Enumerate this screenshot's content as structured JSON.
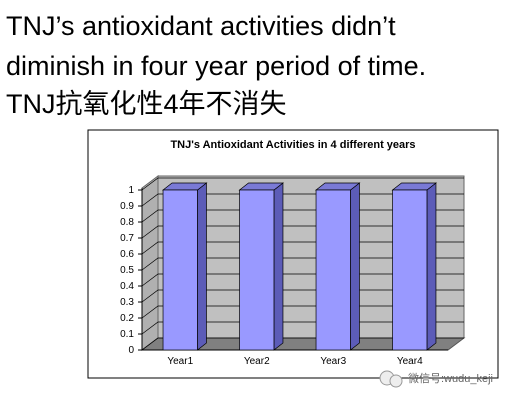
{
  "heading": [
    "TNJ’s antioxidant activities didn’t",
    "diminish in four year period of time.",
    "TNJ抗氧化性4年不消失"
  ],
  "watermark": "微信号:wudu_keji",
  "chart_data": {
    "type": "bar3d",
    "title": "TNJ's Antioxidant Activities in 4 different years",
    "categories": [
      "Year1",
      "Year2",
      "Year3",
      "Year4"
    ],
    "values": [
      1,
      1,
      1,
      1
    ],
    "color": "#9999ff",
    "ylim": [
      0,
      1
    ],
    "yticks": [
      0,
      0.1,
      0.2,
      0.3,
      0.4,
      0.5,
      0.6,
      0.7,
      0.8,
      0.9,
      1
    ],
    "grid": true
  }
}
